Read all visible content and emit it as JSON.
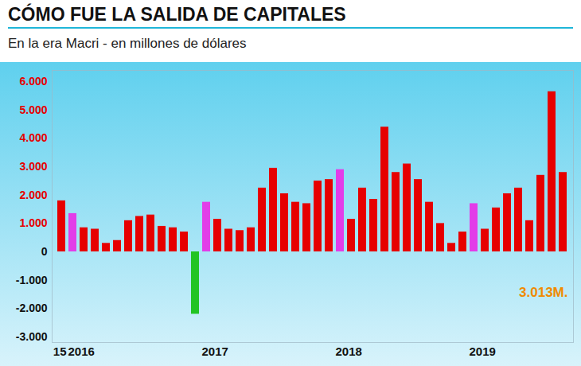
{
  "chart_data": {
    "type": "bar",
    "title": "CÓMO FUE LA SALIDA DE CAPITALES",
    "subtitle": "En la era Macri - en millones de dólares",
    "categories": [
      "15",
      "2016",
      null,
      null,
      null,
      null,
      null,
      null,
      null,
      null,
      null,
      null,
      null,
      "2017",
      null,
      null,
      null,
      null,
      null,
      null,
      null,
      null,
      null,
      null,
      null,
      "2018",
      null,
      null,
      null,
      null,
      null,
      null,
      null,
      null,
      null,
      null,
      null,
      "2019",
      null,
      null,
      null,
      null,
      null,
      null,
      null,
      null
    ],
    "values": [
      1800,
      1350,
      850,
      800,
      300,
      400,
      1100,
      1250,
      1300,
      900,
      850,
      700,
      -2200,
      1750,
      1150,
      800,
      750,
      850,
      2250,
      2950,
      2050,
      1750,
      1700,
      2500,
      2550,
      2900,
      1150,
      2250,
      1850,
      4400,
      2800,
      3100,
      2550,
      1750,
      1000,
      300,
      700,
      1700,
      800,
      1550,
      2050,
      2250,
      1100,
      2700,
      5650,
      2800
    ],
    "colors": [
      "#e60000",
      "#e23de8",
      "#e60000",
      "#e60000",
      "#e60000",
      "#e60000",
      "#e60000",
      "#e60000",
      "#e60000",
      "#e60000",
      "#e60000",
      "#e60000",
      "#22c422",
      "#e23de8",
      "#e60000",
      "#e60000",
      "#e60000",
      "#e60000",
      "#e60000",
      "#e60000",
      "#e60000",
      "#e60000",
      "#e60000",
      "#e60000",
      "#e60000",
      "#e23de8",
      "#e60000",
      "#e60000",
      "#e60000",
      "#e60000",
      "#e60000",
      "#e60000",
      "#e60000",
      "#e60000",
      "#e60000",
      "#e60000",
      "#e60000",
      "#e23de8",
      "#e60000",
      "#e60000",
      "#e60000",
      "#e60000",
      "#e60000",
      "#e60000",
      "#e60000",
      "#e60000"
    ],
    "ylim": [
      -3200,
      6400
    ],
    "yticks": [
      {
        "value": -3000,
        "label": "-3.000"
      },
      {
        "value": -2000,
        "label": "-2.000"
      },
      {
        "value": -1000,
        "label": "-1.000"
      },
      0,
      {
        "value": 1000,
        "label": "1.000"
      },
      {
        "value": 2000,
        "label": "2.000"
      },
      {
        "value": 3000,
        "label": "3.000"
      },
      {
        "value": 4000,
        "label": "4.000"
      },
      {
        "value": 5000,
        "label": "5.000"
      },
      {
        "value": 6000,
        "label": "6.000"
      }
    ],
    "annotation": "3.013M.",
    "grid": false
  }
}
